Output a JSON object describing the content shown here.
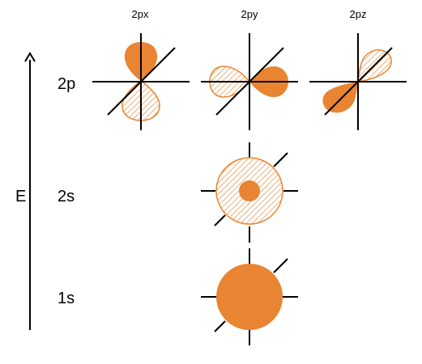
{
  "energy_axis": {
    "label": "E"
  },
  "levels": [
    {
      "label": "2p"
    },
    {
      "label": "2s"
    },
    {
      "label": "1s"
    }
  ],
  "p_orbitals": [
    {
      "label": "2px"
    },
    {
      "label": "2py"
    },
    {
      "label": "2pz"
    }
  ],
  "colors": {
    "orbital_fill": "#E98432",
    "hatch_line": "#E98432",
    "axis_line": "#000000"
  }
}
